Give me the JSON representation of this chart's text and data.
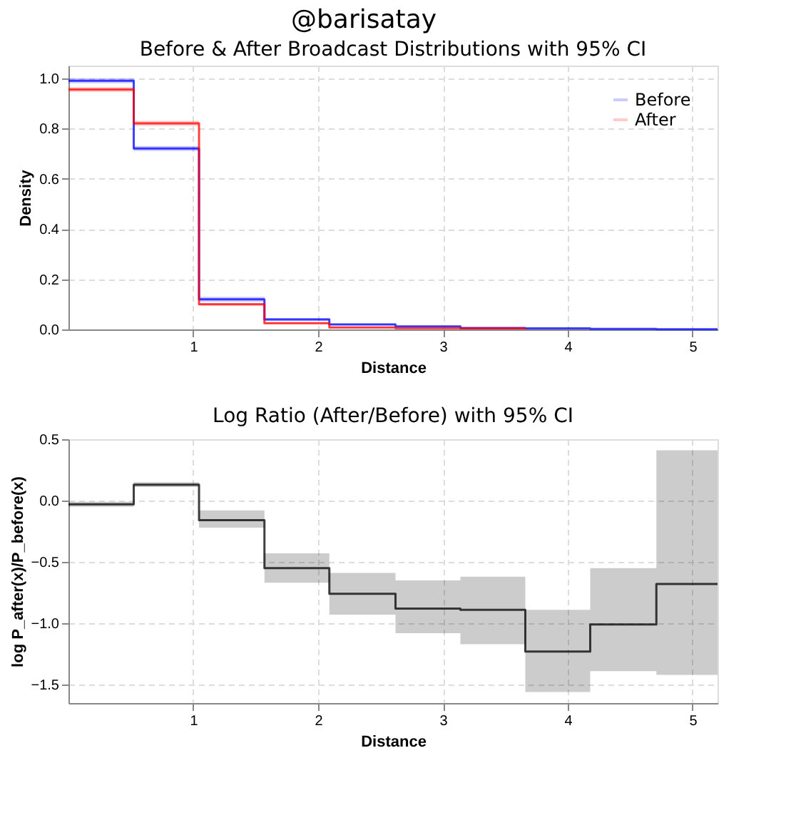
{
  "chart_data": [
    {
      "type": "step",
      "title": "Before & After Broadcast Distributions with 95% CI",
      "xlabel": "Distance",
      "ylabel": "Density",
      "annotations": [
        "@barisatay"
      ],
      "x": [
        0,
        0.523,
        1.046,
        1.57,
        2.09,
        2.62,
        3.14,
        3.66,
        4.18,
        4.71,
        5.2
      ],
      "series": [
        {
          "name": "Before",
          "color": "#0000ff",
          "values": [
            0.99,
            0.72,
            0.12,
            0.04,
            0.02,
            0.012,
            0.006,
            0.004,
            0.002,
            0.001,
            0.001
          ],
          "lower": [
            0.98,
            0.71,
            0.11,
            0.035,
            0.017,
            0.01,
            0.005,
            0.003,
            0.001,
            0.0005,
            0.0005
          ],
          "upper": [
            1.0,
            0.73,
            0.13,
            0.045,
            0.023,
            0.014,
            0.007,
            0.005,
            0.003,
            0.0015,
            0.0015
          ]
        },
        {
          "name": "After",
          "color": "#ff0000",
          "values": [
            0.955,
            0.82,
            0.1,
            0.025,
            0.008,
            0.005,
            0.004,
            0.002,
            null,
            null,
            null
          ],
          "lower": [
            0.945,
            0.81,
            0.095,
            0.022,
            0.006,
            0.004,
            0.003,
            0.0015,
            null,
            null,
            null
          ],
          "upper": [
            0.965,
            0.83,
            0.105,
            0.028,
            0.01,
            0.006,
            0.005,
            0.0025,
            null,
            null,
            null
          ]
        }
      ],
      "xlim": [
        0,
        5.2
      ],
      "xticks": [
        1,
        2,
        3,
        4,
        5
      ],
      "ylim": [
        0,
        1.05
      ],
      "yticks": [
        {
          "value": 0,
          "label": "0.0"
        },
        0.2,
        0.4,
        0.6,
        0.8,
        {
          "value": 1,
          "label": "1.0"
        }
      ],
      "grid": true,
      "legend": "top right",
      "line_style": "solid"
    },
    {
      "type": "step",
      "title": "Log Ratio (After/Before) with 95% CI",
      "xlabel": "Distance",
      "ylabel": "log P_after(x)/P_before(x)",
      "x": [
        0,
        0.523,
        1.046,
        1.57,
        2.09,
        2.62,
        3.14,
        3.66,
        4.18,
        4.71,
        5.2
      ],
      "series": [
        {
          "color": "#000000",
          "values": [
            -0.03,
            0.13,
            -0.16,
            -0.55,
            -0.76,
            -0.88,
            -0.89,
            -1.23,
            -1.01,
            -0.68,
            -0.68
          ],
          "lower": [
            -0.05,
            0.11,
            -0.22,
            -0.67,
            -0.93,
            -1.08,
            -1.17,
            -1.56,
            -1.39,
            -1.42,
            -1.42
          ],
          "upper": [
            -0.01,
            0.15,
            -0.08,
            -0.43,
            -0.59,
            -0.65,
            -0.62,
            -0.89,
            -0.55,
            0.41,
            0.41
          ]
        }
      ],
      "xlim": [
        0,
        5.2
      ],
      "xticks": [
        1,
        2,
        3,
        4,
        5
      ],
      "ylim": [
        -1.65,
        0.5
      ],
      "yticks": [
        -1.5,
        {
          "value": -1,
          "label": "−1.0"
        },
        -0.5,
        {
          "value": 0,
          "label": "0.0"
        },
        0.5
      ],
      "grid": true,
      "line_style": "solid"
    }
  ]
}
